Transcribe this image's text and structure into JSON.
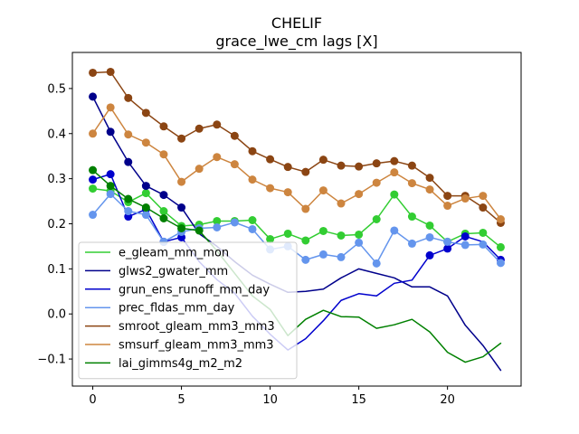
{
  "chart_data": {
    "type": "line",
    "title": "CHELIF",
    "subtitle": "grace_lwe_cm lags [X]",
    "xlabel": "",
    "ylabel": "",
    "xlim": [
      -1.15,
      24.15
    ],
    "ylim": [
      -0.16,
      0.58
    ],
    "xticks": [
      0,
      5,
      10,
      15,
      20
    ],
    "yticks": [
      -0.1,
      0.0,
      0.1,
      0.2,
      0.3,
      0.4,
      0.5
    ],
    "ytick_labels": [
      "−0.1",
      "0.0",
      "0.1",
      "0.2",
      "0.3",
      "0.4",
      "0.5"
    ],
    "legend_position": "lower-left",
    "grid": false,
    "x": [
      0,
      1,
      2,
      3,
      4,
      5,
      6,
      7,
      8,
      9,
      10,
      11,
      12,
      13,
      14,
      15,
      16,
      17,
      18,
      19,
      20,
      21,
      22,
      23
    ],
    "series": [
      {
        "name": "e_gleam_mm_mon",
        "color": "#32cd32",
        "values": [
          0.278,
          0.273,
          0.248,
          0.268,
          0.228,
          0.195,
          0.198,
          0.206,
          0.206,
          0.208,
          0.166,
          0.178,
          0.163,
          0.184,
          0.174,
          0.176,
          0.21,
          0.265,
          0.216,
          0.196,
          0.16,
          0.178,
          0.18,
          0.148
        ],
        "markers": [
          true,
          true,
          true,
          true,
          true,
          true,
          true,
          true,
          true,
          true,
          true,
          true,
          true,
          true,
          true,
          true,
          true,
          true,
          true,
          true,
          true,
          true,
          true,
          true
        ]
      },
      {
        "name": "glws2_gwater_mm",
        "color": "#00008b",
        "values": [
          0.482,
          0.404,
          0.337,
          0.284,
          0.264,
          0.236,
          0.178,
          0.15,
          0.116,
          0.086,
          0.066,
          0.048,
          0.05,
          0.055,
          0.08,
          0.1,
          0.09,
          0.08,
          0.06,
          0.06,
          0.04,
          -0.025,
          -0.07,
          -0.125
        ],
        "markers": [
          true,
          true,
          true,
          true,
          true,
          true,
          false,
          false,
          false,
          false,
          false,
          false,
          false,
          false,
          false,
          false,
          false,
          false,
          false,
          false,
          false,
          false,
          false,
          false
        ]
      },
      {
        "name": "grun_ens_runoff_mm_day",
        "color": "#0000cd",
        "values": [
          0.298,
          0.31,
          0.216,
          0.232,
          0.16,
          0.17,
          0.116,
          0.076,
          0.046,
          -0.005,
          -0.045,
          -0.08,
          -0.055,
          -0.015,
          0.03,
          0.045,
          0.04,
          0.068,
          0.075,
          0.13,
          0.145,
          0.172,
          0.16,
          0.12
        ],
        "markers": [
          true,
          true,
          true,
          true,
          true,
          true,
          false,
          false,
          false,
          false,
          false,
          false,
          false,
          false,
          false,
          false,
          false,
          false,
          false,
          true,
          true,
          true,
          false,
          true
        ]
      },
      {
        "name": "prec_fldas_mm_day",
        "color": "#6495ed",
        "values": [
          0.22,
          0.266,
          0.228,
          0.22,
          0.16,
          0.182,
          0.19,
          0.192,
          0.203,
          0.188,
          0.143,
          0.15,
          0.12,
          0.132,
          0.126,
          0.158,
          0.112,
          0.185,
          0.156,
          0.17,
          0.16,
          0.153,
          0.154,
          0.113
        ],
        "markers": [
          true,
          true,
          true,
          true,
          true,
          true,
          true,
          true,
          true,
          true,
          true,
          true,
          true,
          true,
          true,
          true,
          true,
          true,
          true,
          true,
          true,
          true,
          true,
          true
        ]
      },
      {
        "name": "smroot_gleam_mm3_mm3",
        "color": "#8b4513",
        "values": [
          0.535,
          0.537,
          0.479,
          0.446,
          0.416,
          0.389,
          0.411,
          0.42,
          0.395,
          0.361,
          0.343,
          0.326,
          0.315,
          0.342,
          0.329,
          0.327,
          0.334,
          0.339,
          0.329,
          0.302,
          0.262,
          0.262,
          0.236,
          0.202
        ],
        "markers": [
          true,
          true,
          true,
          true,
          true,
          true,
          true,
          true,
          true,
          true,
          true,
          true,
          true,
          true,
          true,
          true,
          true,
          true,
          true,
          true,
          true,
          true,
          true,
          true
        ]
      },
      {
        "name": "smsurf_gleam_mm3_mm3",
        "color": "#cd853f",
        "values": [
          0.4,
          0.458,
          0.398,
          0.38,
          0.354,
          0.293,
          0.322,
          0.348,
          0.332,
          0.298,
          0.279,
          0.27,
          0.233,
          0.274,
          0.245,
          0.266,
          0.291,
          0.314,
          0.29,
          0.276,
          0.24,
          0.256,
          0.262,
          0.21
        ],
        "markers": [
          true,
          true,
          true,
          true,
          true,
          true,
          true,
          true,
          true,
          true,
          true,
          true,
          true,
          true,
          true,
          true,
          true,
          true,
          true,
          true,
          true,
          true,
          true,
          true
        ]
      },
      {
        "name": "lai_gimms4g_m2_m2",
        "color": "#008000",
        "values": [
          0.319,
          0.284,
          0.255,
          0.236,
          0.212,
          0.19,
          0.185,
          0.14,
          0.09,
          0.04,
          0.01,
          -0.048,
          -0.012,
          0.008,
          -0.006,
          -0.007,
          -0.032,
          -0.024,
          -0.012,
          -0.04,
          -0.085,
          -0.107,
          -0.095,
          -0.065
        ],
        "markers": [
          true,
          true,
          true,
          true,
          true,
          true,
          true,
          false,
          false,
          false,
          false,
          false,
          false,
          false,
          false,
          false,
          false,
          false,
          false,
          false,
          false,
          false,
          false,
          false
        ]
      }
    ]
  }
}
